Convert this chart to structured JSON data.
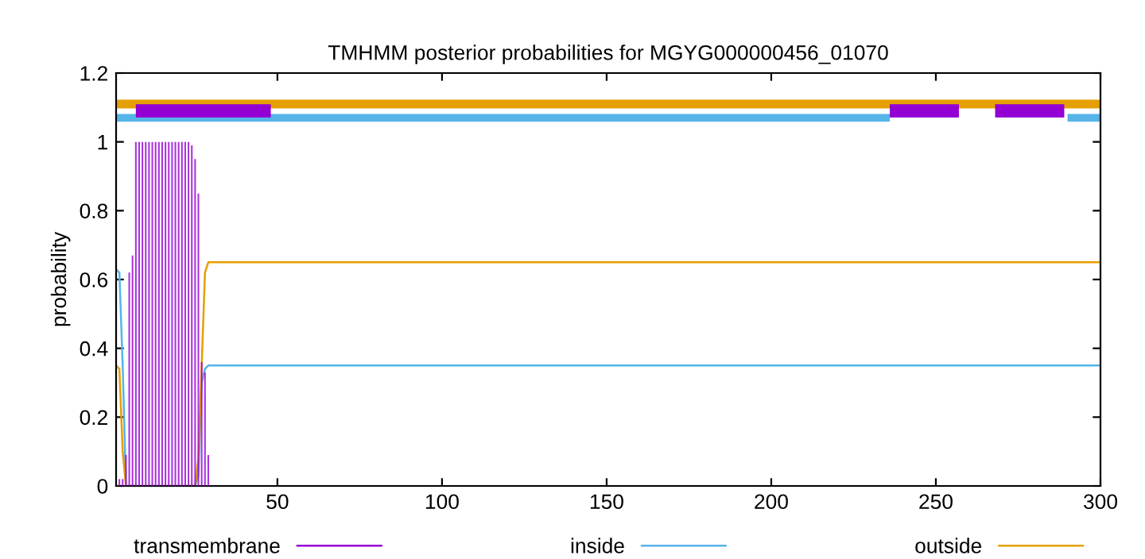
{
  "chart_data": {
    "type": "line",
    "title": "TMHMM posterior probabilities for MGYG000000456_01070",
    "ylabel": "probability",
    "xlim": [
      1,
      300
    ],
    "ylim": [
      0,
      1.2
    ],
    "xticks": [
      50,
      100,
      150,
      200,
      250,
      300
    ],
    "yticks": [
      0,
      0.2,
      0.4,
      0.6,
      0.8,
      1,
      1.2
    ],
    "legend": "bottom",
    "grid": false,
    "series": [
      {
        "name": "transmembrane",
        "type": "bar",
        "color": "#9400d3",
        "x": [
          2,
          3,
          4,
          5,
          6,
          7,
          8,
          9,
          10,
          11,
          12,
          13,
          14,
          15,
          16,
          17,
          18,
          19,
          20,
          21,
          22,
          23,
          24,
          25,
          26,
          27,
          28,
          29
        ],
        "values": [
          0.02,
          0.02,
          0.09,
          0.62,
          0.67,
          1,
          1,
          1,
          1,
          1,
          1,
          1,
          1,
          1,
          1,
          1,
          1,
          1,
          1,
          1,
          1,
          1,
          0.99,
          0.95,
          0.85,
          0.36,
          0.33,
          0.09
        ]
      },
      {
        "name": "inside",
        "color": "#56b4e9",
        "x": [
          1,
          2,
          3,
          4,
          25,
          26,
          27,
          28,
          29,
          300
        ],
        "values": [
          0.63,
          0.62,
          0.35,
          0,
          0,
          0.03,
          0.3,
          0.34,
          0.35,
          0.35
        ]
      },
      {
        "name": "outside",
        "color": "#e69f00",
        "x": [
          1,
          2,
          3,
          4,
          25,
          26,
          27,
          28,
          29,
          300
        ],
        "values": [
          0.35,
          0.34,
          0.1,
          0,
          0,
          0.08,
          0.35,
          0.62,
          0.65,
          0.65
        ]
      },
      {
        "color": "#e69f00",
        "x": [
          1,
          300
        ],
        "values": [
          1.11,
          1.11
        ]
      },
      {
        "color": "#56b4e9",
        "x": [
          1,
          236,
          237,
          290,
          300
        ],
        "values": [
          1.07,
          1.07,
          null,
          1.07,
          1.07
        ]
      },
      {
        "color": "#9400d3",
        "x": [
          7,
          48,
          49,
          236,
          257,
          258,
          268,
          289
        ],
        "values": [
          1.09,
          1.09,
          null,
          1.09,
          1.09,
          null,
          1.09,
          1.09
        ]
      }
    ]
  }
}
